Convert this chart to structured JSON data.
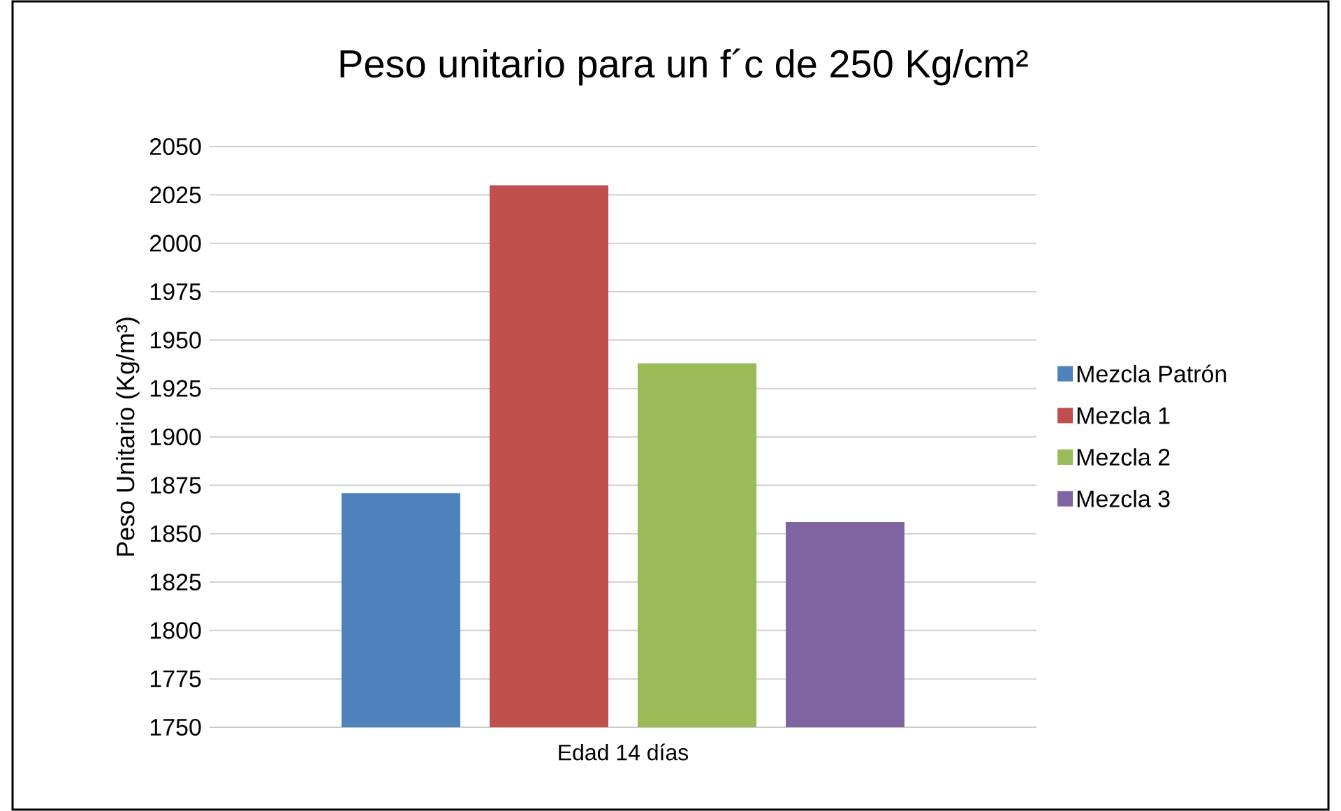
{
  "chart_data": {
    "type": "bar",
    "title": "Peso unitario para un f´c de 250 Kg/cm²",
    "ylabel": "Peso Unitario (Kg/m³)",
    "categories": [
      "Edad 14 días"
    ],
    "series": [
      {
        "name": "Mezcla Patrón",
        "color": "#4f81bd",
        "values": [
          1871
        ]
      },
      {
        "name": "Mezcla 1",
        "color": "#c0504d",
        "values": [
          2030
        ]
      },
      {
        "name": "Mezcla 2",
        "color": "#9bbb59",
        "values": [
          1938
        ]
      },
      {
        "name": "Mezcla 3",
        "color": "#8064a2",
        "values": [
          1856
        ]
      }
    ],
    "ylim": [
      1750,
      2050
    ],
    "yticks": [
      1750,
      1775,
      1800,
      1825,
      1850,
      1875,
      1900,
      1925,
      1950,
      1975,
      2000,
      2025,
      2050
    ],
    "grid": "y",
    "legend": "right"
  }
}
